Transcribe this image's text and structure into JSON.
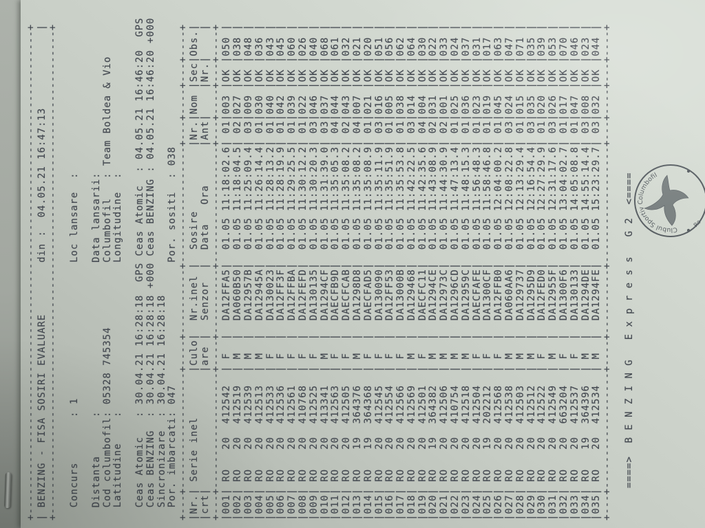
{
  "colors": {
    "ink": "#434850",
    "paper": "#c6ccc4",
    "stamp_ink": "#4a5056"
  },
  "header_box": {
    "title": "BENZING - FISA SOSIRI EVALUARE",
    "din_label": "din :",
    "datetime": "04.05.21 16:47:13"
  },
  "info": {
    "rows": [
      {
        "left_label": "Concurs",
        "left_value": "1",
        "right_label": "Loc lansare",
        "right_value": ""
      },
      {},
      {
        "left_label": "Distanta",
        "left_value": "",
        "right_label": "Data lansarii",
        "right_value": ""
      },
      {
        "left_label": "Cod columbofil",
        "left_value": "05328 745354",
        "right_label": "Columbofil",
        "right_value": "Team Boldea & Vio"
      },
      {
        "left_label": "Latitudine",
        "left_value": "",
        "right_label": "Longitudine",
        "right_value": ""
      },
      {},
      {
        "left_label": "Ceas Atomic",
        "left_value": "30.04.21 16:28:18  GPS",
        "right_label": "Ceas Atomic",
        "right_value": "04.05.21 16:46:20  GPS"
      },
      {
        "left_label": "Ceas BENZING",
        "left_value": "30.04.21 16:28:18 +000",
        "right_label": "Ceas BENZING",
        "right_value": "04.05.21 16:46:20 +000"
      },
      {
        "left_label": "Sincronizare",
        "left_value": "30.04.21 16:28:18"
      },
      {
        "left_label": "Por. imbarcati",
        "left_value": "047",
        "right_label": "Por. sositi",
        "right_value": "038"
      }
    ]
  },
  "table": {
    "header_row1": [
      "Nr.",
      " Serie inel",
      "Culo",
      "  Nr.inel",
      "  Sosire",
      "Nr.",
      "Nom",
      "Sec",
      "Obs."
    ],
    "header_row2": [
      "crt",
      "",
      "are",
      "  Senzor",
      "  Data   Ora",
      "Ant",
      "",
      "Nr.",
      ""
    ],
    "rows": [
      [
        "001",
        "20",
        "412542",
        "F",
        "DA12FFA5",
        "01.05",
        "11:18:02.6",
        "01",
        "003",
        "OK",
        "050"
      ],
      [
        "002",
        "20",
        "412519",
        "M",
        "DA060B50",
        "01.05",
        "11:18:04.5",
        "02",
        "027",
        "OK",
        "038"
      ],
      [
        "003",
        "20",
        "412539",
        "M",
        "DA12957B",
        "01.05",
        "11:25:09.4",
        "03",
        "009",
        "OK",
        "048"
      ],
      [
        "004",
        "20",
        "412513",
        "M",
        "DA12945A",
        "01.05",
        "11:26:14.4",
        "01",
        "030",
        "OK",
        "036"
      ],
      [
        "005",
        "20",
        "412533",
        "F",
        "DA130023",
        "01.05",
        "11:28:13.2",
        "01",
        "040",
        "OK",
        "043"
      ],
      [
        "006",
        "20",
        "412536",
        "F",
        "DA12FF3F",
        "01.05",
        "11:28:19.9",
        "01",
        "042",
        "OK",
        "045"
      ],
      [
        "007",
        "20",
        "412561",
        "F",
        "DA12FFBA",
        "01.05",
        "11:29:25.5",
        "01",
        "039",
        "OK",
        "060"
      ],
      [
        "008",
        "20",
        "410768",
        "F",
        "DA12FEFD",
        "01.05",
        "11:30:12.2",
        "01",
        "022",
        "OK",
        "026"
      ],
      [
        "009",
        "20",
        "412525",
        "F",
        "DA130135",
        "01.05",
        "11:30:20.3",
        "03",
        "046",
        "OK",
        "040"
      ],
      [
        "010",
        "20",
        "413341",
        "M",
        "DA1294CF",
        "01.05",
        "11:31:39.0",
        "03",
        "037",
        "OK",
        "068"
      ],
      [
        "011",
        "20",
        "412563",
        "F",
        "DAECFB9D",
        "01.05",
        "11:35:05.3",
        "04",
        "044",
        "OK",
        "061"
      ],
      [
        "012",
        "20",
        "412505",
        "F",
        "DAECFCAB",
        "01.05",
        "11:35:08.2",
        "02",
        "043",
        "OK",
        "032"
      ],
      [
        "013",
        "19",
        "364376",
        "M",
        "DA1298D8",
        "01.05",
        "11:35:08.2",
        "04",
        "007",
        "OK",
        "021"
      ],
      [
        "014",
        "19",
        "364368",
        "F",
        "DAECFAD5",
        "01.05",
        "11:35:08.9",
        "01",
        "021",
        "OK",
        "020"
      ],
      [
        "015",
        "20",
        "412545",
        "F",
        "DA130090",
        "01.05",
        "11:35:11.9",
        "03",
        "016",
        "OK",
        "051"
      ],
      [
        "016",
        "20",
        "412554",
        "F",
        "DA12FF53",
        "01.05",
        "11:35:51.9",
        "01",
        "005",
        "OK",
        "056"
      ],
      [
        "017",
        "20",
        "412566",
        "F",
        "DA13000B",
        "01.05",
        "11:35:53.8",
        "01",
        "038",
        "OK",
        "062"
      ],
      [
        "018",
        "20",
        "412569",
        "M",
        "DA129468",
        "01.05",
        "11:42:22.5",
        "03",
        "014",
        "OK",
        "064"
      ],
      [
        "019",
        "20",
        "412501",
        "F",
        "DAECFC11",
        "01.05",
        "11:42:35.6",
        "04",
        "004",
        "OK",
        "030"
      ],
      [
        "020",
        "19",
        "364382",
        "M",
        "DA1294CE",
        "01.05",
        "11:43:08.9",
        "02",
        "031",
        "OK",
        "022"
      ],
      [
        "021",
        "20",
        "412506",
        "M",
        "DA12973C",
        "01.05",
        "11:44:30.9",
        "02",
        "001",
        "OK",
        "033"
      ],
      [
        "022",
        "20",
        "410754",
        "M",
        "DA1296CD",
        "01.05",
        "11:47:13.4",
        "01",
        "025",
        "OK",
        "024"
      ],
      [
        "023",
        "20",
        "412518",
        "M",
        "DA12959C",
        "01.05",
        "11:48:15.3",
        "01",
        "036",
        "OK",
        "037"
      ],
      [
        "024",
        "20",
        "412504",
        "F",
        "DAECFAFE",
        "01.05",
        "11:56:48.3",
        "01",
        "023",
        "OK",
        "031"
      ],
      [
        "025",
        "19",
        "202212",
        "F",
        "DA1300CF",
        "01.05",
        "11:58:46.8",
        "01",
        "019",
        "OK",
        "017"
      ],
      [
        "026",
        "20",
        "412568",
        "F",
        "DA12FFB0",
        "01.05",
        "12:04:00.2",
        "01",
        "045",
        "OK",
        "063"
      ],
      [
        "027",
        "20",
        "412538",
        "M",
        "DA060AA6",
        "01.05",
        "12:08:22.8",
        "03",
        "024",
        "OK",
        "047"
      ],
      [
        "028",
        "20",
        "412503",
        "M",
        "DA129737",
        "01.05",
        "12:13:29.4",
        "01",
        "015",
        "OK",
        "071"
      ],
      [
        "029",
        "20",
        "412512",
        "M",
        "DA1295D9",
        "01.05",
        "12:16:54.4",
        "03",
        "035",
        "OK",
        "035"
      ],
      [
        "030",
        "20",
        "412522",
        "F",
        "DA12FED0",
        "01.05",
        "12:27:29.9",
        "01",
        "020",
        "OK",
        "039"
      ],
      [
        "031",
        "20",
        "412549",
        "M",
        "DA12955F",
        "01.05",
        "12:31:17.6",
        "03",
        "026",
        "OK",
        "053"
      ],
      [
        "032",
        "20",
        "663204",
        "F",
        "DA1300F6",
        "01.05",
        "13:04:02.7",
        "01",
        "017",
        "OK",
        "070"
      ],
      [
        "033",
        "20",
        "412537",
        "F",
        "DA130133",
        "01.05",
        "14:05:08.8",
        "01",
        "047",
        "OK",
        "046"
      ],
      [
        "034",
        "19",
        "364396",
        "M",
        "DA1294DE",
        "01.05",
        "14:55:14.4",
        "03",
        "008",
        "OK",
        "023"
      ],
      [
        "035",
        "20",
        "412534",
        "M",
        "DA1294FE",
        "01.05",
        "15:23:29.7",
        "03",
        "032",
        "OK",
        "044"
      ]
    ],
    "country_prefix": "RO"
  },
  "footer": {
    "line": "====>  B E N Z I N G   E x p r e s s   G 2  <===="
  },
  "stamp": {
    "arc_text": "Clubul Sportiv Columbofil",
    "bottom_text": "Ro"
  }
}
